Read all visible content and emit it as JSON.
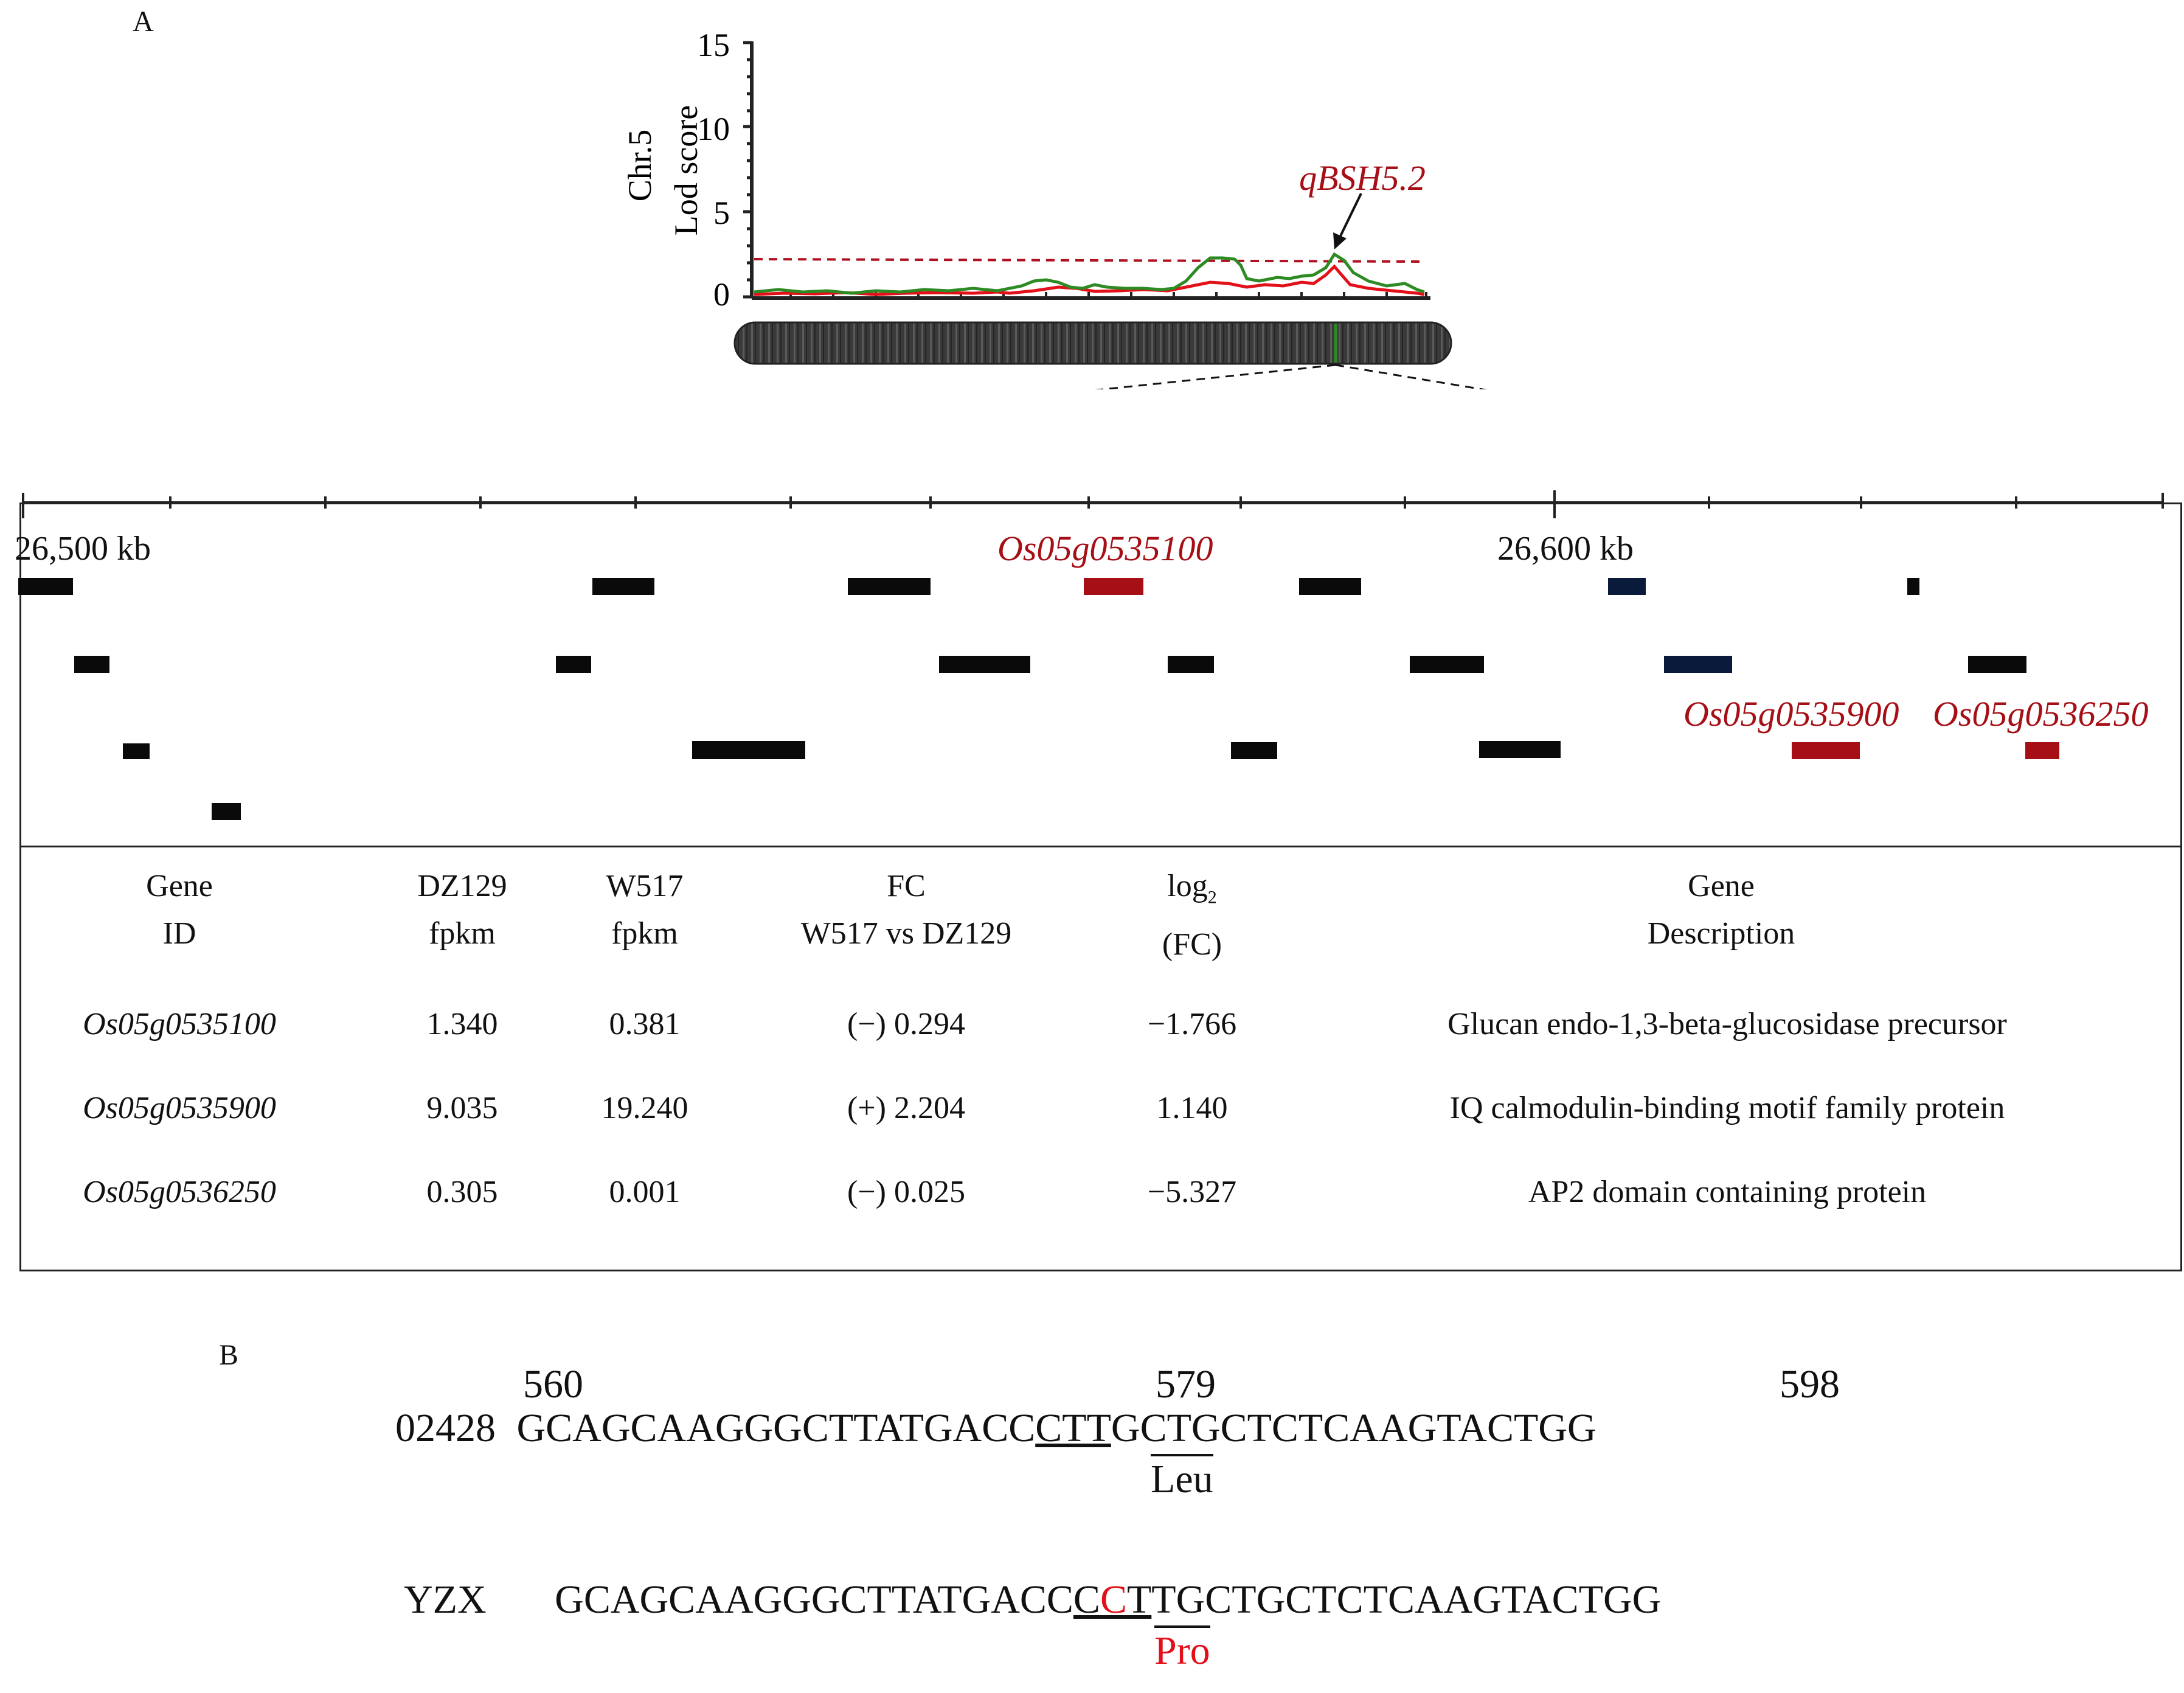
{
  "figure": {
    "panel_a_label": "A",
    "panel_b_label": "B",
    "lod_plot": {
      "ylabel_line1": "Chr.5",
      "ylabel_line2": "Lod score",
      "yticks": [
        "15",
        "10",
        "5",
        "0"
      ],
      "qtl_label": "qBSH5.2",
      "threshold": 2.0,
      "colors": {
        "green": "#2e8b24",
        "red": "#e3101a",
        "threshold": "#b01020"
      }
    },
    "region": {
      "left_label": "26,500 kb",
      "right_label": "26,600 kb",
      "genes_highlight": [
        "Os05g0535100",
        "Os05g0535900",
        "Os05g0536250"
      ]
    },
    "table": {
      "headers": [
        {
          "line1": "Gene",
          "line2": "ID"
        },
        {
          "line1": "DZ129",
          "line2": "fpkm"
        },
        {
          "line1": "W517",
          "line2": "fpkm"
        },
        {
          "line1": "FC",
          "line2": "W517 vs DZ129"
        },
        {
          "line1": "log",
          "sub": "2",
          "line2": "(FC)"
        },
        {
          "line1": "Gene",
          "line2": "Description"
        }
      ],
      "rows": [
        {
          "id": "Os05g0535100",
          "dz": "1.340",
          "w": "0.381",
          "fc": "(−) 0.294",
          "log": "−1.766",
          "desc": "Glucan endo-1,3-beta-glucosidase precursor"
        },
        {
          "id": "Os05g0535900",
          "dz": "9.035",
          "w": "19.240",
          "fc": "(+) 2.204",
          "log": "1.140",
          "desc": "IQ calmodulin-binding motif family protein"
        },
        {
          "id": "Os05g0536250",
          "dz": "0.305",
          "w": "0.001",
          "fc": "(−) 0.025",
          "log": "−5.327",
          "desc": "AP2 domain containing protein"
        }
      ]
    },
    "sequence": {
      "pos_start": "560",
      "pos_mid": "579",
      "pos_end": "598",
      "line1_name": "02428",
      "line1_pre": "GCAGCAAGGGCTTATGACC",
      "line1_codon": "CTT",
      "line1_post": "GCTGCTCTCAAGTACTGG",
      "line1_aa": "Leu",
      "line2_name": "YZX",
      "line2_pre": "GCAGCAAGGGCTTATGACC",
      "line2_c1": "C",
      "line2_c2": "C",
      "line2_c3": "T",
      "line2_post": "TGCTGCTCTCAAGTACTGG",
      "line2_aa": "Pro"
    }
  }
}
